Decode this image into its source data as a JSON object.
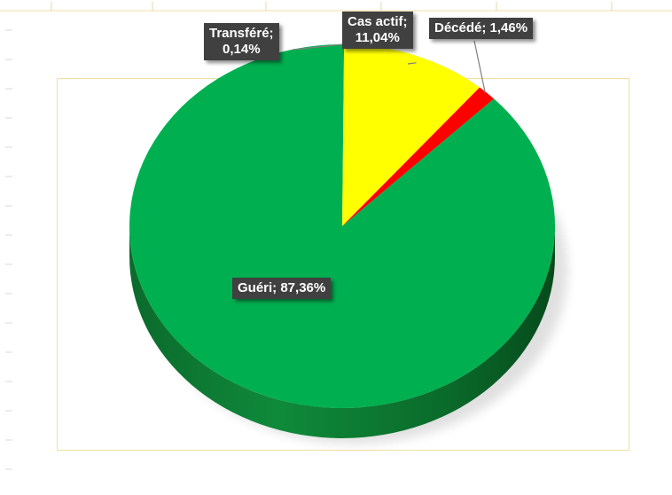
{
  "colors": {
    "gueri": "#00b050",
    "cas_actif": "#ffff00",
    "decede": "#ff0000",
    "transfere": "#00b050"
  },
  "chart_data": {
    "type": "pie",
    "title": "",
    "slices": [
      {
        "label": "Transféré",
        "value": 0.14,
        "display": "0,14%",
        "color": "#00b050"
      },
      {
        "label": "Cas actif",
        "value": 11.04,
        "display": "11,04%",
        "color": "#ffff00"
      },
      {
        "label": "Décédé",
        "value": 1.46,
        "display": "1,46%",
        "color": "#ff0000"
      },
      {
        "label": "Guéri",
        "value": 87.36,
        "display": "87,36%",
        "color": "#00b050"
      }
    ],
    "labels": {
      "transfere": {
        "line1": "Transféré;",
        "line2": "0,14%"
      },
      "cas_actif": {
        "line1": "Cas actif;",
        "line2": "11,04%"
      },
      "decede": {
        "line1": "Décédé; 1,46%"
      },
      "gueri": {
        "line1": "Guéri; 87,36%"
      }
    }
  }
}
